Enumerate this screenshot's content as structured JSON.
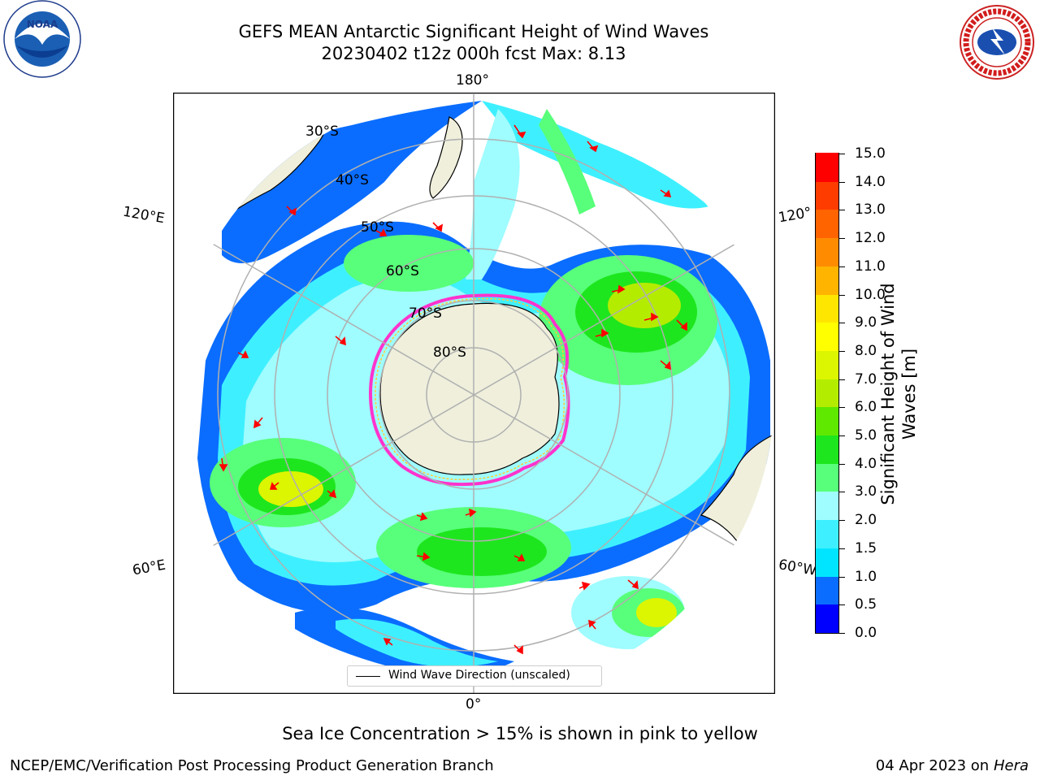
{
  "title": {
    "line1": "GEFS MEAN Antarctic Significant Height of Wind Waves",
    "line2": "20230402 t12z 000h fcst   Max: 8.13"
  },
  "logos": {
    "left": {
      "name": "NOAA",
      "ring_text": "NATIONAL OCEANIC AND ATMOSPHERIC ADMINISTRATION",
      "bottom_text": "U.S. DEPARTMENT OF COMMERCE"
    },
    "right": {
      "name": "National Weather Service",
      "ring_text": "NATIONAL WEATHER SERVICE"
    }
  },
  "map": {
    "projection": "south-polar-stereographic",
    "longitude_labels": [
      "180°",
      "120°E",
      "120°",
      "60°E",
      "60°W",
      "0°"
    ],
    "latitude_labels": [
      "30°S",
      "40°S",
      "50°S",
      "60°S",
      "70°S",
      "80°S"
    ],
    "legend": {
      "label": "Wind Wave Direction (unscaled)"
    },
    "colors": {
      "land": "#efefdc",
      "ocean": "#ffffff",
      "grid": "#b0b0b0",
      "arrows": "#ff0000",
      "sea_ice": "#ff33cc"
    }
  },
  "colorbar": {
    "label": "Significant Height of Wind Waves [m]",
    "ticks": [
      "0.0",
      "0.5",
      "1.0",
      "1.5",
      "2.0",
      "3.0",
      "4.0",
      "5.0",
      "6.0",
      "7.0",
      "8.0",
      "9.0",
      "10.0",
      "11.0",
      "12.0",
      "13.0",
      "14.0",
      "15.0"
    ],
    "colors": [
      "#0000ff",
      "#0a6dff",
      "#00e5ff",
      "#3ef0ff",
      "#9ffcff",
      "#58ff7a",
      "#1ee61e",
      "#5fe800",
      "#b4ec00",
      "#dcf500",
      "#ffff00",
      "#ffe600",
      "#ffb400",
      "#ff8c00",
      "#ff6400",
      "#ff3c00",
      "#ff0000"
    ]
  },
  "notes": {
    "sea_ice": "Sea Ice Concentration > 15% is shown in pink to yellow",
    "footer_left": "NCEP/EMC/Verification Post Processing Product Generation Branch",
    "footer_right_prefix": "04 Apr 2023 on ",
    "footer_right_italic": "Hera"
  }
}
